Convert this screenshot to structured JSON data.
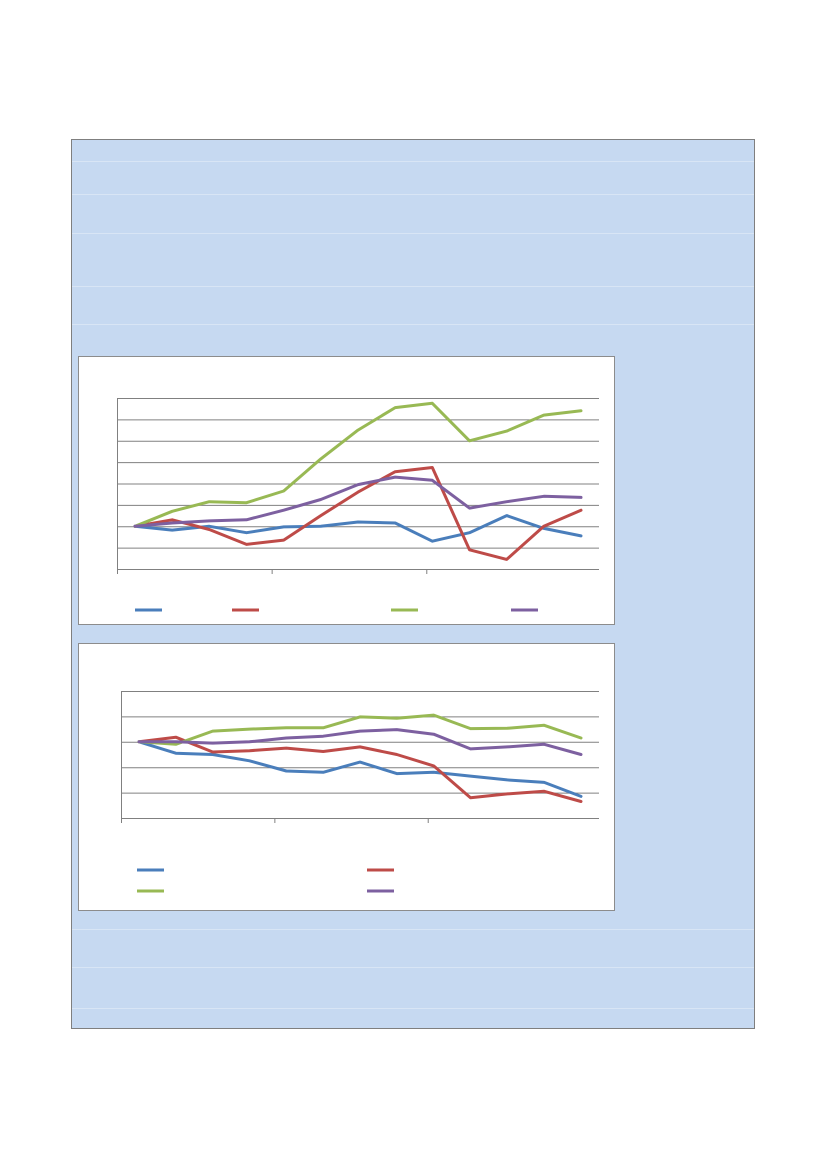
{
  "colors": {
    "panel_bg": "#c6d9f1",
    "panel_border": "#7f7f7f",
    "chart_bg": "#ffffff",
    "gridline": "#808080",
    "series_blue": "#4a7ebb",
    "series_red": "#be4b48",
    "series_green": "#98b954",
    "series_purple": "#7d60a0"
  },
  "chart_data": [
    {
      "type": "line",
      "title": "",
      "xlabel": "",
      "ylabel": "",
      "ylim": [
        -2,
        6
      ],
      "y_gridlines": [
        -2,
        -1,
        0,
        1,
        2,
        3,
        4,
        5,
        6
      ],
      "x": [
        0,
        1,
        2,
        3,
        4,
        5,
        6,
        7,
        8,
        9,
        10,
        11,
        12
      ],
      "x_tick_marks": [
        0,
        5,
        10
      ],
      "grid": true,
      "legend": "bottom",
      "series": [
        {
          "color": "#4a7ebb",
          "values": [
            0,
            -0.18,
            0,
            -0.3,
            -0.03,
            0,
            0.2,
            0.15,
            -0.7,
            -0.3,
            0.5,
            -0.1,
            -0.45
          ]
        },
        {
          "color": "#be4b48",
          "values": [
            0,
            0.3,
            -0.15,
            -0.85,
            -0.65,
            0.5,
            1.6,
            2.55,
            2.75,
            -1.1,
            -1.55,
            0,
            0.75
          ]
        },
        {
          "color": "#98b954",
          "values": [
            0,
            0.7,
            1.15,
            1.1,
            1.65,
            3.15,
            4.5,
            5.55,
            5.75,
            4.0,
            4.45,
            5.2,
            5.4
          ]
        },
        {
          "color": "#7d60a0",
          "values": [
            0,
            0.15,
            0.25,
            0.3,
            0.75,
            1.25,
            1.95,
            2.3,
            2.15,
            0.85,
            1.15,
            1.4,
            1.35
          ]
        }
      ]
    },
    {
      "type": "line",
      "title": "",
      "xlabel": "",
      "ylabel": "",
      "ylim": [
        -3,
        2
      ],
      "y_gridlines": [
        -3,
        -2,
        -1,
        0,
        1,
        2
      ],
      "x": [
        0,
        1,
        2,
        3,
        4,
        5,
        6,
        7,
        8,
        9,
        10,
        11,
        12
      ],
      "x_tick_marks": [
        0,
        5,
        10
      ],
      "grid": true,
      "legend": "bottom",
      "series": [
        {
          "color": "#4a7ebb",
          "values": [
            0,
            -0.45,
            -0.5,
            -0.75,
            -1.15,
            -1.2,
            -0.8,
            -1.25,
            -1.2,
            -1.35,
            -1.5,
            -1.6,
            -2.15
          ]
        },
        {
          "color": "#be4b48",
          "values": [
            0,
            0.18,
            -0.4,
            -0.35,
            -0.25,
            -0.38,
            -0.2,
            -0.5,
            -0.95,
            -2.2,
            -2.05,
            -1.95,
            -2.35
          ]
        },
        {
          "color": "#98b954",
          "values": [
            0,
            -0.1,
            0.42,
            0.5,
            0.55,
            0.55,
            0.98,
            0.93,
            1.05,
            0.52,
            0.53,
            0.65,
            0.15
          ]
        },
        {
          "color": "#7d60a0",
          "values": [
            0,
            0,
            -0.05,
            0,
            0.15,
            0.22,
            0.42,
            0.48,
            0.3,
            -0.28,
            -0.2,
            -0.1,
            -0.5
          ]
        }
      ]
    }
  ]
}
